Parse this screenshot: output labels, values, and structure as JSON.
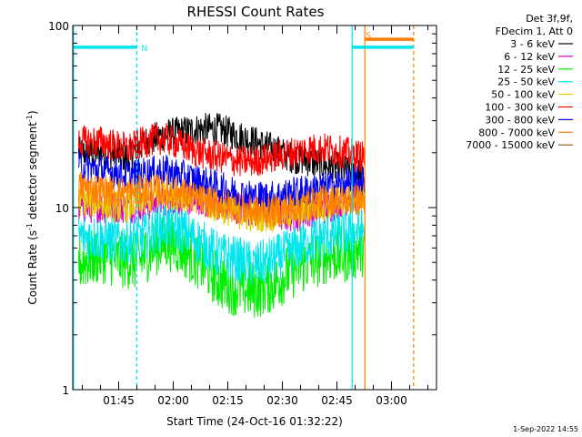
{
  "page": {
    "background": "#ffffff"
  },
  "chart_data": {
    "type": "line",
    "title": "RHESSI Count Rates",
    "xlabel": "Start Time (24-Oct-16 01:32:22)",
    "ylabel_main": "Count Rate (s",
    "ylabel_sup": "-1",
    "ylabel_rest": " detector segment",
    "ylabel_sup2": "-1",
    "ylabel_close": ")",
    "x_unit": "minutes after 01:32:22",
    "x_range_min": [
      0,
      100
    ],
    "yscale": "log",
    "ylim": [
      1,
      100
    ],
    "y_ticks": [
      {
        "v": 1,
        "label": "1"
      },
      {
        "v": 10,
        "label": "10"
      },
      {
        "v": 100,
        "label": "100"
      }
    ],
    "x_ticks": [
      {
        "label": "01:45",
        "min": 12.63
      },
      {
        "label": "02:00",
        "min": 27.63
      },
      {
        "label": "02:15",
        "min": 42.63
      },
      {
        "label": "02:30",
        "min": 57.63
      },
      {
        "label": "02:45",
        "min": 72.63
      },
      {
        "label": "03:00",
        "min": 87.63
      }
    ],
    "legend_header": [
      "Det 3f,9f,",
      "FDecim 1, Att 0"
    ],
    "legend_position": "top-right outside plot",
    "footer_date": "1-Sep-2022 14:55",
    "data_window": [
      1.6,
      80.3
    ],
    "vlines": [
      {
        "min": 0.2,
        "color": "#00e5ee",
        "dash": false
      },
      {
        "min": 17.6,
        "color": "#00e5ee",
        "dash": true
      },
      {
        "min": 76.8,
        "color": "#00e5ee",
        "dash": false
      },
      {
        "min": 80.3,
        "color": "#ff7f00",
        "dash": false
      },
      {
        "min": 93.7,
        "color": "#ff7f00",
        "dash": true
      }
    ],
    "bands": [
      {
        "x0": 0.2,
        "x1": 17.6,
        "v": 76,
        "color": "#00e5ee",
        "label": "N"
      },
      {
        "x0": 76.8,
        "x1": 93.7,
        "v": 76,
        "color": "#00e5ee",
        "label": ""
      },
      {
        "x0": 80.3,
        "x1": 93.7,
        "v": 84,
        "color": "#ff7f00",
        "label": "S"
      }
    ],
    "series": [
      {
        "name": "3 - 6 keV",
        "color": "#000000",
        "points": [
          [
            2,
            20
          ],
          [
            8,
            20
          ],
          [
            15,
            19
          ],
          [
            20,
            23
          ],
          [
            25,
            25
          ],
          [
            30,
            26
          ],
          [
            35,
            27
          ],
          [
            40,
            27
          ],
          [
            45,
            25
          ],
          [
            50,
            23
          ],
          [
            55,
            21
          ],
          [
            60,
            19
          ],
          [
            65,
            18
          ],
          [
            70,
            17
          ],
          [
            75,
            16
          ],
          [
            80,
            15
          ]
        ]
      },
      {
        "name": "6 - 12 keV",
        "color": "#d000d0",
        "points": [
          [
            2,
            10
          ],
          [
            10,
            10
          ],
          [
            18,
            10
          ],
          [
            25,
            11
          ],
          [
            35,
            11
          ],
          [
            45,
            10
          ],
          [
            55,
            9
          ],
          [
            62,
            9
          ],
          [
            70,
            10
          ],
          [
            75,
            11
          ],
          [
            80,
            12
          ]
        ]
      },
      {
        "name": "12 - 25 keV",
        "color": "#00ee00",
        "points": [
          [
            2,
            5.0
          ],
          [
            8,
            5.5
          ],
          [
            12,
            5.2
          ],
          [
            18,
            5.0
          ],
          [
            22,
            6.0
          ],
          [
            26,
            6.5
          ],
          [
            30,
            6.0
          ],
          [
            35,
            5.0
          ],
          [
            40,
            4.0
          ],
          [
            45,
            3.6
          ],
          [
            50,
            3.5
          ],
          [
            55,
            3.8
          ],
          [
            60,
            4.5
          ],
          [
            65,
            5.0
          ],
          [
            70,
            5.5
          ],
          [
            75,
            5.5
          ],
          [
            80,
            6.0
          ]
        ]
      },
      {
        "name": "25 - 50 keV",
        "color": "#00e5ee",
        "points": [
          [
            2,
            7.0
          ],
          [
            8,
            6.8
          ],
          [
            14,
            6.5
          ],
          [
            20,
            7.0
          ],
          [
            25,
            8.0
          ],
          [
            30,
            7.5
          ],
          [
            35,
            6.5
          ],
          [
            40,
            5.5
          ],
          [
            45,
            5.2
          ],
          [
            50,
            4.8
          ],
          [
            55,
            5.2
          ],
          [
            60,
            5.8
          ],
          [
            65,
            6.5
          ],
          [
            70,
            7.0
          ],
          [
            75,
            7.2
          ],
          [
            80,
            7.5
          ]
        ]
      },
      {
        "name": "50 - 100 keV",
        "color": "#e8c800",
        "points": [
          [
            2,
            11
          ],
          [
            8,
            10.5
          ],
          [
            14,
            10
          ],
          [
            20,
            11
          ],
          [
            26,
            12
          ],
          [
            32,
            11.5
          ],
          [
            40,
            10
          ],
          [
            48,
            9
          ],
          [
            55,
            9
          ],
          [
            62,
            9.5
          ],
          [
            70,
            10.5
          ],
          [
            76,
            11
          ],
          [
            80,
            11.5
          ]
        ]
      },
      {
        "name": "100 - 300 keV",
        "color": "#ff0000",
        "points": [
          [
            2,
            23
          ],
          [
            8,
            23
          ],
          [
            15,
            21
          ],
          [
            20,
            23
          ],
          [
            25,
            24
          ],
          [
            30,
            22
          ],
          [
            35,
            20
          ],
          [
            40,
            19
          ],
          [
            45,
            18
          ],
          [
            50,
            18
          ],
          [
            55,
            19
          ],
          [
            60,
            20
          ],
          [
            65,
            21
          ],
          [
            70,
            21
          ],
          [
            75,
            20
          ],
          [
            80,
            19
          ]
        ]
      },
      {
        "name": "300 - 800 keV",
        "color": "#0000ee",
        "points": [
          [
            2,
            17
          ],
          [
            8,
            16
          ],
          [
            15,
            15
          ],
          [
            20,
            15.5
          ],
          [
            25,
            16
          ],
          [
            30,
            15
          ],
          [
            35,
            14
          ],
          [
            40,
            13
          ],
          [
            45,
            12
          ],
          [
            50,
            11.5
          ],
          [
            55,
            11.5
          ],
          [
            60,
            12
          ],
          [
            65,
            12.5
          ],
          [
            70,
            13
          ],
          [
            75,
            13.5
          ],
          [
            80,
            14
          ]
        ]
      },
      {
        "name": "800 - 7000 keV",
        "color": "#ff7f00",
        "points": [
          [
            2,
            13
          ],
          [
            8,
            12.5
          ],
          [
            15,
            12
          ],
          [
            20,
            12.5
          ],
          [
            25,
            12.5
          ],
          [
            30,
            12
          ],
          [
            35,
            11
          ],
          [
            40,
            10.5
          ],
          [
            45,
            10
          ],
          [
            50,
            9.5
          ],
          [
            55,
            9.5
          ],
          [
            60,
            10
          ],
          [
            65,
            10.5
          ],
          [
            70,
            11
          ],
          [
            75,
            11
          ],
          [
            80,
            11
          ]
        ]
      },
      {
        "name": "7000 - 15000 keV",
        "color": "#8b6914",
        "points": []
      }
    ]
  }
}
